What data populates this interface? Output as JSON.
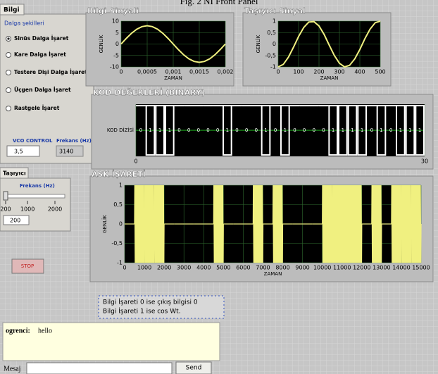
{
  "caption": "Fig. 2 NI Front Panel",
  "tabs": {
    "info": "Bilgi",
    "carrier": "Taşıyıcı"
  },
  "waveforms": {
    "title": "Dalga şekilleri",
    "options": [
      "Sinüs Dalga İşaret",
      "Kare Dalga İşaret",
      "Testere Dişi Dalga İşaret",
      "Üçgen Dalga İşaret",
      "Rastgele İşaret"
    ],
    "selected": 0
  },
  "vco": {
    "label": "VCO CONTROL",
    "value": "3,5"
  },
  "frequency": {
    "label": "Frekans (Hz)",
    "value": "3140"
  },
  "carrier_slider": {
    "label": "Frekans (Hz)",
    "lim": [
      200,
      2000
    ],
    "ticks": [
      200,
      1000,
      2000
    ],
    "value": 200
  },
  "stop": "STOP",
  "charts": [
    {
      "type": "line",
      "title": "Bilgi Sinyali",
      "xlabel": "ZAMAN",
      "ylabel": "GENLİK",
      "xlim": [
        0,
        0.002
      ],
      "xticks": [
        0,
        {
          "value": 0.0005,
          "label": "0,0005"
        },
        {
          "value": 0.001,
          "label": "0,001"
        },
        {
          "value": 0.0015,
          "label": "0,0015"
        },
        {
          "value": 0.002,
          "label": "0,002"
        }
      ],
      "ylim": [
        -10,
        10
      ],
      "yticks": [
        10,
        5,
        0,
        -5,
        -10
      ],
      "color": "#f0f080",
      "x": [
        0,
        0.0001,
        0.0002,
        0.0003,
        0.0004,
        0.0005,
        0.0006,
        0.0007,
        0.0008,
        0.0009,
        0.001,
        0.0011,
        0.0012,
        0.0013,
        0.0014,
        0.0015,
        0.0016,
        0.0017,
        0.0018,
        0.0019,
        0.002
      ],
      "values": [
        0,
        2.47,
        4.7,
        6.47,
        7.61,
        8,
        7.61,
        6.47,
        4.7,
        2.47,
        0,
        -2.47,
        -4.7,
        -6.47,
        -7.61,
        -8,
        -7.61,
        -6.47,
        -4.7,
        -2.47,
        0
      ]
    },
    {
      "type": "line",
      "title": "Taşıyıcı Sinyal",
      "xlabel": "ZAMAN",
      "ylabel": "GENLİK",
      "xlim": [
        0,
        500
      ],
      "xticks": [
        0,
        100,
        200,
        300,
        400,
        500
      ],
      "ylim": [
        -1,
        1
      ],
      "yticks": [
        1,
        {
          "value": 0.5,
          "label": "0,5"
        },
        0,
        {
          "value": -0.5,
          "label": "-0,5"
        },
        -1
      ],
      "color": "#f0f080",
      "x": [
        0,
        25,
        50,
        75,
        100,
        125,
        150,
        175,
        200,
        225,
        250,
        275,
        300,
        325,
        350,
        375,
        400,
        425,
        450,
        475,
        500
      ],
      "values": [
        -1,
        -0.89,
        -0.58,
        -0.14,
        0.33,
        0.72,
        0.96,
        0.98,
        0.79,
        0.42,
        -0.05,
        -0.5,
        -0.84,
        -1,
        -0.93,
        -0.65,
        -0.24,
        0.24,
        0.65,
        0.93,
        1
      ]
    },
    {
      "type": "binary",
      "title": "KOD DEĞERLERİ (BINARY)",
      "ylabel": "KOD DİZİSİ",
      "xlim": [
        0,
        30
      ],
      "xticks": [
        0,
        30
      ],
      "bits": [
        0,
        1,
        1,
        1,
        0,
        0,
        0,
        0,
        0,
        1,
        0,
        0,
        0,
        1,
        0,
        1,
        0,
        0,
        0,
        0,
        1,
        1,
        1,
        1,
        0,
        1,
        0,
        1,
        1,
        1
      ]
    },
    {
      "type": "ask",
      "title": "ASK İŞARETİ",
      "xlabel": "ZAMAN",
      "ylabel": "GENLİK",
      "xlim": [
        0,
        15000
      ],
      "xticks": [
        0,
        1000,
        2000,
        3000,
        4000,
        5000,
        6000,
        7000,
        8000,
        9000,
        10000,
        11000,
        12000,
        13000,
        14000,
        15000
      ],
      "ylim": [
        -1,
        1
      ],
      "yticks": [
        1,
        {
          "value": 0.5,
          "label": "0,5"
        },
        0,
        {
          "value": -0.5,
          "label": "-0,5"
        },
        -1
      ],
      "color": "#f0f080"
    }
  ],
  "note": [
    "Bilgi İşareti 0 ise  çıkış bilgisi 0",
    "Bilgi İşareti 1 ise cos Wt."
  ],
  "chat": {
    "user": "ogrenci:",
    "message": "hello"
  },
  "message_bar": {
    "label": "Mesaj",
    "button": "Send"
  }
}
